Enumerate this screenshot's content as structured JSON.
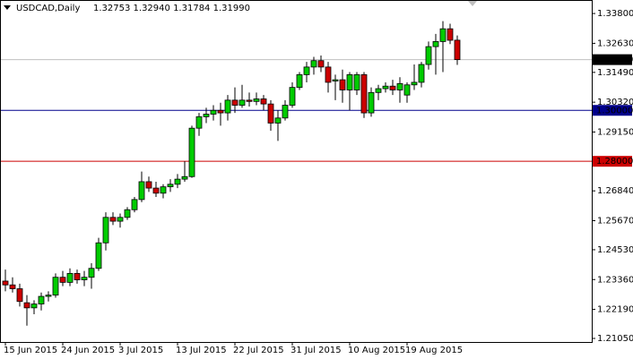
{
  "chart_data": {
    "type": "candlestick",
    "symbol": "USDCAD,Daily",
    "info": "1.32753 1.32940 1.31784 1.31990",
    "categories": [
      "15 Jun 2015",
      null,
      null,
      null,
      null,
      null,
      null,
      null,
      "24 Jun 2015",
      null,
      null,
      null,
      null,
      null,
      null,
      null,
      "3 Jul 2015",
      null,
      null,
      null,
      null,
      null,
      null,
      null,
      "13 Jul 2015",
      null,
      null,
      null,
      null,
      null,
      null,
      null,
      "22 Jul 2015",
      null,
      null,
      null,
      null,
      null,
      null,
      null,
      "31 Jul 2015",
      null,
      null,
      null,
      null,
      null,
      null,
      null,
      "10 Aug 2015",
      null,
      null,
      null,
      null,
      null,
      null,
      null,
      "19 Aug 2015",
      null,
      null,
      null,
      null,
      null,
      null,
      null
    ],
    "open": [
      1.233,
      1.2315,
      1.23,
      1.2245,
      1.2225,
      1.224,
      1.227,
      1.2275,
      1.2345,
      1.2325,
      1.236,
      1.2335,
      1.2345,
      1.238,
      1.248,
      1.258,
      1.2565,
      1.258,
      1.261,
      1.265,
      1.272,
      1.2695,
      1.2675,
      1.27,
      1.271,
      1.273,
      1.274,
      1.293,
      1.2975,
      1.2985,
      1.3,
      1.299,
      1.304,
      1.302,
      1.304,
      1.3035,
      1.3045,
      1.3025,
      1.295,
      1.297,
      1.302,
      1.309,
      1.314,
      1.317,
      1.3195,
      1.317,
      1.3115,
      1.312,
      1.308,
      1.308,
      1.314,
      1.299,
      1.307,
      1.3085,
      1.3095,
      1.308,
      1.306,
      1.31,
      1.311,
      1.318,
      1.325,
      1.327,
      1.332,
      1.32753
    ],
    "high": [
      1.2375,
      1.2345,
      1.232,
      1.2275,
      1.2255,
      1.2285,
      1.229,
      1.236,
      1.237,
      1.238,
      1.2375,
      1.237,
      1.24,
      1.25,
      1.26,
      1.26,
      1.2595,
      1.262,
      1.266,
      1.276,
      1.274,
      1.272,
      1.271,
      1.273,
      1.275,
      1.28,
      1.294,
      1.299,
      1.301,
      1.302,
      1.303,
      1.306,
      1.309,
      1.31,
      1.307,
      1.307,
      1.306,
      1.304,
      1.3,
      1.304,
      1.311,
      1.315,
      1.319,
      1.321,
      1.3215,
      1.319,
      1.314,
      1.316,
      1.315,
      1.315,
      1.315,
      1.309,
      1.31,
      1.311,
      1.312,
      1.313,
      1.311,
      1.318,
      1.319,
      1.327,
      1.33,
      1.335,
      1.334,
      1.3294
    ],
    "low": [
      1.229,
      1.2285,
      1.223,
      1.2155,
      1.22,
      1.2215,
      1.225,
      1.2265,
      1.231,
      1.231,
      1.232,
      1.231,
      1.23,
      1.237,
      1.245,
      1.255,
      1.254,
      1.257,
      1.26,
      1.264,
      1.268,
      1.266,
      1.2655,
      1.268,
      1.2695,
      1.272,
      1.2735,
      1.29,
      1.295,
      1.296,
      1.294,
      1.296,
      1.299,
      1.301,
      1.3015,
      1.302,
      1.3,
      1.292,
      1.288,
      1.296,
      1.301,
      1.308,
      1.311,
      1.314,
      1.315,
      1.307,
      1.304,
      1.303,
      1.3,
      1.306,
      1.297,
      1.2975,
      1.304,
      1.307,
      1.306,
      1.303,
      1.303,
      1.308,
      1.309,
      1.316,
      1.314,
      1.315,
      1.326,
      1.31784
    ],
    "close": [
      1.2315,
      1.23,
      1.225,
      1.2225,
      1.224,
      1.227,
      1.2275,
      1.2345,
      1.2325,
      1.236,
      1.2335,
      1.2345,
      1.238,
      1.248,
      1.258,
      1.2565,
      1.258,
      1.261,
      1.265,
      1.272,
      1.2695,
      1.2675,
      1.27,
      1.271,
      1.273,
      1.274,
      1.293,
      1.2975,
      1.2985,
      1.3,
      1.299,
      1.304,
      1.302,
      1.304,
      1.3035,
      1.3045,
      1.3025,
      1.295,
      1.297,
      1.302,
      1.309,
      1.314,
      1.317,
      1.3195,
      1.317,
      1.311,
      1.312,
      1.308,
      1.314,
      1.314,
      1.299,
      1.307,
      1.3085,
      1.3095,
      1.308,
      1.3105,
      1.31,
      1.311,
      1.318,
      1.325,
      1.327,
      1.332,
      1.3275,
      1.3199
    ],
    "up_color": "#00cc00",
    "down_color": "#cc0000",
    "ylim": [
      1.2091,
      1.3433
    ],
    "yticks": [
      {
        "value": 1.338,
        "label": "1.33800"
      },
      {
        "value": 1.3263,
        "label": "1.32630"
      },
      {
        "value": 1.3149,
        "label": "1.31490"
      },
      {
        "value": 1.3032,
        "label": "1.30320"
      },
      {
        "value": 1.2915,
        "label": "1.29150"
      },
      {
        "value": 1.2684,
        "label": "1.26840"
      },
      {
        "value": 1.2567,
        "label": "1.25670"
      },
      {
        "value": 1.2453,
        "label": "1.24530"
      },
      {
        "value": 1.2336,
        "label": "1.23360"
      },
      {
        "value": 1.2219,
        "label": "1.22190"
      },
      {
        "value": 1.2105,
        "label": "1.21050"
      }
    ],
    "levels": [
      {
        "value": 1.3,
        "label": "1.30000",
        "color": "#00008b"
      },
      {
        "value": 1.28,
        "label": "1.28000",
        "color": "#cc0000"
      }
    ],
    "bid": {
      "value": 1.3199,
      "label": "1.31990",
      "color": "#c0c0c0"
    }
  }
}
